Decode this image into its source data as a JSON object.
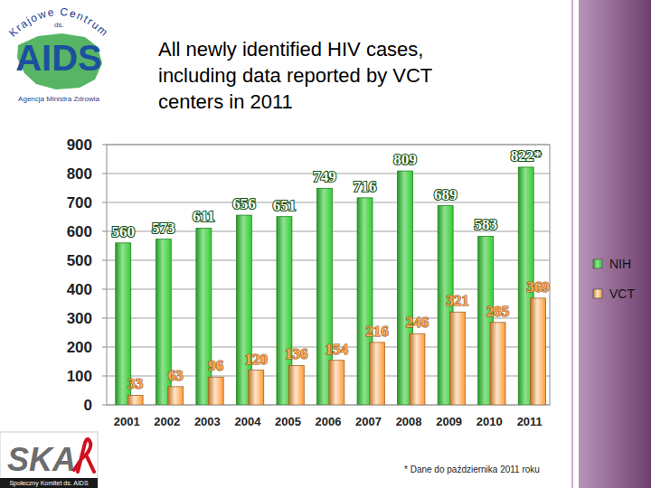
{
  "chart_data": {
    "type": "bar",
    "title": "All newly identified HIV cases, including data reported by VCT centers in 2011",
    "categories": [
      "2001",
      "2002",
      "2003",
      "2004",
      "2005",
      "2006",
      "2007",
      "2008",
      "2009",
      "2010",
      "2011"
    ],
    "series": [
      {
        "name": "NIH",
        "color": "#33cc33",
        "values": [
          560,
          573,
          611,
          656,
          651,
          749,
          716,
          809,
          689,
          583,
          822
        ],
        "value_labels": [
          "560",
          "573",
          "611",
          "656",
          "651",
          "749",
          "716",
          "809",
          "689",
          "583",
          "822*"
        ]
      },
      {
        "name": "VCT",
        "color": "#ff9933",
        "values": [
          33,
          63,
          96,
          120,
          136,
          154,
          216,
          246,
          321,
          285,
          369
        ]
      }
    ],
    "ylim": [
      0,
      900
    ],
    "yticks": [
      0,
      100,
      200,
      300,
      400,
      500,
      600,
      700,
      800,
      900
    ],
    "grid": true,
    "legend": "right",
    "data_labels": true,
    "annotations": [
      "* Dane do października 2011 roku"
    ]
  },
  "logos": {
    "top": [
      "Krajowe Centrum",
      "ds.",
      "AIDS",
      "Agencja Ministra Zdrowia"
    ],
    "bottom": [
      "SKA",
      "Społeczny Komitet ds. AIDS"
    ]
  }
}
